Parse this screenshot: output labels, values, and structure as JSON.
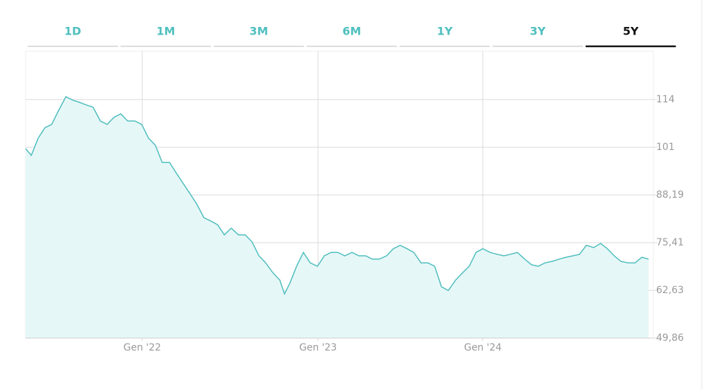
{
  "tabs": [
    "1D",
    "1M",
    "3M",
    "6M",
    "1Y",
    "3Y",
    "5Y"
  ],
  "selected_tab": 6,
  "chart_data": {
    "type": "area",
    "x": [
      0,
      11,
      24,
      37,
      50,
      63,
      77,
      90,
      103,
      116,
      129,
      143,
      156,
      169,
      182,
      195,
      209,
      222,
      235,
      248,
      261,
      275,
      288,
      301,
      314,
      327,
      341,
      354,
      367,
      380,
      393,
      407,
      420,
      433,
      446,
      459,
      473,
      486,
      495,
      505,
      518,
      531,
      544,
      558,
      571,
      584,
      597,
      610,
      624,
      637,
      650,
      663,
      676,
      690,
      703,
      716,
      729,
      742,
      756,
      769,
      782,
      795,
      808,
      822,
      835,
      848,
      861,
      874,
      888,
      901,
      914,
      927,
      940,
      954,
      967,
      980,
      993,
      1006,
      1020,
      1033,
      1046,
      1059,
      1072,
      1086,
      1099,
      1112,
      1125,
      1138,
      1152,
      1165,
      1178,
      1191
    ],
    "values": [
      100.6,
      98.8,
      103.4,
      106.2,
      107.1,
      110.8,
      114.5,
      113.6,
      113.0,
      112.3,
      111.7,
      108.0,
      107.1,
      109.0,
      109.9,
      108.0,
      108.0,
      107.1,
      103.4,
      101.5,
      96.9,
      96.9,
      94.1,
      91.3,
      88.6,
      85.8,
      82.1,
      81.2,
      80.2,
      77.5,
      79.3,
      77.5,
      77.5,
      75.6,
      71.9,
      70.0,
      67.3,
      65.4,
      61.7,
      64.5,
      69.1,
      72.8,
      70.0,
      69.1,
      71.9,
      72.8,
      72.8,
      71.9,
      72.8,
      71.9,
      71.9,
      71.0,
      71.0,
      71.9,
      73.8,
      74.7,
      73.8,
      72.8,
      70.0,
      70.0,
      69.1,
      63.6,
      62.6,
      65.4,
      67.3,
      69.1,
      72.8,
      73.8,
      72.8,
      72.3,
      71.9,
      72.3,
      72.8,
      71.0,
      69.5,
      69.1,
      70.0,
      70.4,
      71.0,
      71.5,
      71.9,
      72.3,
      74.7,
      74.1,
      75.2,
      73.8,
      71.9,
      70.4,
      70.0,
      70.0,
      71.5,
      71.0
    ],
    "color": "#4dbdbd",
    "fill_color": "#e6f7f7",
    "xlim": [
      0,
      1200
    ],
    "xticks": [
      {
        "value": 223,
        "label": "Gen '22"
      },
      {
        "value": 559,
        "label": "Gen '23"
      },
      {
        "value": 874,
        "label": "Gen '24"
      }
    ],
    "ylim": [
      49.86,
      126.7
    ],
    "yticks": [
      {
        "value": 49.86,
        "label": "49,86"
      },
      {
        "value": 62.63,
        "label": "62,63"
      },
      {
        "value": 75.41,
        "label": "75,41"
      },
      {
        "value": 88.19,
        "label": "88,19"
      },
      {
        "value": 100.97,
        "label": "101"
      },
      {
        "value": 113.75,
        "label": "114"
      }
    ],
    "grid": true
  }
}
